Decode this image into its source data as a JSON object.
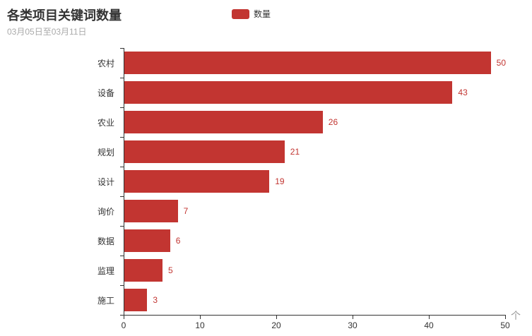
{
  "header": {
    "title": "各类项目关键词数量",
    "subtitle": "03月05日至03月11日"
  },
  "legend": {
    "items": [
      {
        "label": "数量",
        "color": "#c23531"
      }
    ]
  },
  "chart_data": {
    "type": "bar",
    "orientation": "horizontal",
    "title": "各类项目关键词数量",
    "subtitle": "03月05日至03月11日",
    "categories": [
      "农村",
      "设备",
      "农业",
      "规划",
      "设计",
      "询价",
      "数据",
      "监理",
      "施工"
    ],
    "categories_order": "top-to-bottom",
    "series": [
      {
        "name": "数量",
        "values": [
          50,
          43,
          26,
          21,
          19,
          7,
          6,
          5,
          3
        ]
      }
    ],
    "values": [
      50,
      43,
      26,
      21,
      19,
      7,
      6,
      5,
      3
    ],
    "xlabel": "个",
    "ylabel": "",
    "xlim": [
      0,
      50
    ],
    "x_ticks": [
      0,
      10,
      20,
      30,
      40,
      50
    ],
    "grid": false,
    "legend_position": "top-center",
    "bar_color": "#c23531",
    "value_label_color": "#c23531",
    "value_labels_visible": true
  }
}
